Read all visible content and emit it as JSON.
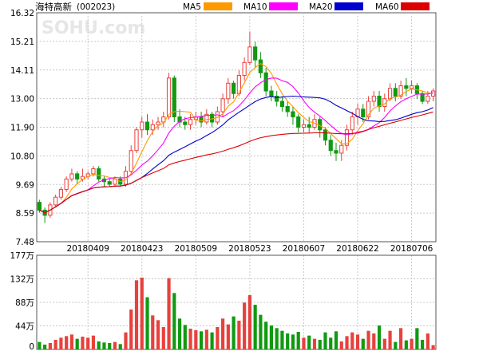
{
  "header": {
    "title": "海特高新",
    "code": "(002023)",
    "watermark": "SOHU.com"
  },
  "legend": [
    {
      "name": "MA5",
      "color": "#ff9900"
    },
    {
      "name": "MA10",
      "color": "#ff00ff"
    },
    {
      "name": "MA20",
      "color": "#0000cc"
    },
    {
      "name": "MA60",
      "color": "#dd0000"
    }
  ],
  "colors": {
    "up": "#e8413d",
    "down": "#119911",
    "grid": "#c8c8c8",
    "border": "#555555"
  },
  "chart_data": [
    {
      "type": "candlestick",
      "ylim": [
        7.48,
        16.32
      ],
      "y_ticks": [
        "16.32",
        "15.21",
        "14.11",
        "13.00",
        "11.90",
        "10.80",
        "9.69",
        "8.59",
        "7.48"
      ],
      "x_ticks": [
        {
          "index": 9,
          "label": "20180409"
        },
        {
          "index": 19,
          "label": "20180423"
        },
        {
          "index": 29,
          "label": "20180509"
        },
        {
          "index": 39,
          "label": "20180523"
        },
        {
          "index": 49,
          "label": "20180607"
        },
        {
          "index": 59,
          "label": "20180622"
        },
        {
          "index": 69,
          "label": "20180706"
        }
      ],
      "candles": [
        [
          9.0,
          8.7,
          9.1,
          8.6
        ],
        [
          8.7,
          8.5,
          8.8,
          8.2
        ],
        [
          8.5,
          8.9,
          9.0,
          8.4
        ],
        [
          8.9,
          9.2,
          9.3,
          8.8
        ],
        [
          9.2,
          9.5,
          9.6,
          9.1
        ],
        [
          9.5,
          9.9,
          10.0,
          9.4
        ],
        [
          9.9,
          10.1,
          10.3,
          9.8
        ],
        [
          10.1,
          9.9,
          10.2,
          9.7
        ],
        [
          9.9,
          10.0,
          10.3,
          9.8
        ],
        [
          10.0,
          10.1,
          10.2,
          9.9
        ],
        [
          10.1,
          10.3,
          10.4,
          10.0
        ],
        [
          10.3,
          9.9,
          10.4,
          9.8
        ],
        [
          9.9,
          9.8,
          10.0,
          9.6
        ],
        [
          9.8,
          9.7,
          9.9,
          9.6
        ],
        [
          9.7,
          9.9,
          10.0,
          9.6
        ],
        [
          9.9,
          9.7,
          10.0,
          9.6
        ],
        [
          9.7,
          10.2,
          10.4,
          9.6
        ],
        [
          10.2,
          11.0,
          11.2,
          10.1
        ],
        [
          11.0,
          11.8,
          11.9,
          10.9
        ],
        [
          11.8,
          12.1,
          12.3,
          11.5
        ],
        [
          12.1,
          11.8,
          12.4,
          11.6
        ],
        [
          11.8,
          12.0,
          12.2,
          11.6
        ],
        [
          12.0,
          12.1,
          12.3,
          11.8
        ],
        [
          12.1,
          12.3,
          12.5,
          11.9
        ],
        [
          12.3,
          13.8,
          14.0,
          12.2
        ],
        [
          13.8,
          12.3,
          13.9,
          12.1
        ],
        [
          12.3,
          12.1,
          12.6,
          11.9
        ],
        [
          12.1,
          12.0,
          12.3,
          11.8
        ],
        [
          12.0,
          12.2,
          12.4,
          11.8
        ],
        [
          12.2,
          12.3,
          12.5,
          12.0
        ],
        [
          12.3,
          12.1,
          12.5,
          11.9
        ],
        [
          12.1,
          12.4,
          12.6,
          12.0
        ],
        [
          12.4,
          12.1,
          12.5,
          11.9
        ],
        [
          12.1,
          12.5,
          12.7,
          12.0
        ],
        [
          12.5,
          13.0,
          13.2,
          12.3
        ],
        [
          13.0,
          13.6,
          13.8,
          12.8
        ],
        [
          13.6,
          13.2,
          13.7,
          13.0
        ],
        [
          13.2,
          13.9,
          14.1,
          13.1
        ],
        [
          13.9,
          14.4,
          14.6,
          13.7
        ],
        [
          14.4,
          15.0,
          15.6,
          14.3
        ],
        [
          15.0,
          14.5,
          15.2,
          14.2
        ],
        [
          14.5,
          14.0,
          14.8,
          13.8
        ],
        [
          14.0,
          13.3,
          14.2,
          13.1
        ],
        [
          13.3,
          13.1,
          13.5,
          12.9
        ],
        [
          13.1,
          12.9,
          13.3,
          12.7
        ],
        [
          12.9,
          12.7,
          13.1,
          12.5
        ],
        [
          12.7,
          12.5,
          12.9,
          12.3
        ],
        [
          12.5,
          12.3,
          12.7,
          12.0
        ],
        [
          12.3,
          11.9,
          12.4,
          11.7
        ],
        [
          11.9,
          12.0,
          12.2,
          11.7
        ],
        [
          12.0,
          11.9,
          12.3,
          11.7
        ],
        [
          11.9,
          12.2,
          12.4,
          11.8
        ],
        [
          12.2,
          11.8,
          12.3,
          11.5
        ],
        [
          11.8,
          11.4,
          11.9,
          11.2
        ],
        [
          11.4,
          11.0,
          11.6,
          10.8
        ],
        [
          11.0,
          10.9,
          11.3,
          10.6
        ],
        [
          10.9,
          11.2,
          11.4,
          10.6
        ],
        [
          11.2,
          11.8,
          12.0,
          11.0
        ],
        [
          11.8,
          12.3,
          12.5,
          11.6
        ],
        [
          12.3,
          12.6,
          12.8,
          12.0
        ],
        [
          12.6,
          12.3,
          12.8,
          12.1
        ],
        [
          12.3,
          12.9,
          13.1,
          12.2
        ],
        [
          12.9,
          13.1,
          13.3,
          12.7
        ],
        [
          13.1,
          12.7,
          13.3,
          12.5
        ],
        [
          12.7,
          13.0,
          13.2,
          12.5
        ],
        [
          13.0,
          13.4,
          13.6,
          12.9
        ],
        [
          13.4,
          13.1,
          13.6,
          12.9
        ],
        [
          13.1,
          13.5,
          13.7,
          13.0
        ],
        [
          13.5,
          13.4,
          13.8,
          13.1
        ],
        [
          13.4,
          13.5,
          13.7,
          13.2
        ],
        [
          13.5,
          13.2,
          13.6,
          13.0
        ],
        [
          13.2,
          12.9,
          13.3,
          12.8
        ],
        [
          12.9,
          13.1,
          13.3,
          12.8
        ],
        [
          13.1,
          13.3,
          13.4,
          12.9
        ]
      ]
    },
    {
      "type": "bar",
      "ylim": [
        0,
        177
      ],
      "y_ticks": [
        "177万",
        "132万",
        "88万",
        "44万",
        "0"
      ],
      "values": [
        14,
        9,
        12,
        18,
        22,
        25,
        28,
        20,
        24,
        22,
        26,
        15,
        13,
        12,
        14,
        10,
        32,
        75,
        130,
        135,
        98,
        64,
        55,
        42,
        134,
        106,
        58,
        46,
        39,
        36,
        34,
        37,
        32,
        42,
        58,
        47,
        62,
        54,
        88,
        102,
        84,
        65,
        52,
        45,
        40,
        35,
        30,
        28,
        33,
        22,
        26,
        20,
        18,
        32,
        22,
        34,
        15,
        25,
        32,
        28,
        20,
        35,
        30,
        45,
        20,
        35,
        14,
        40,
        17,
        20,
        40,
        18,
        30,
        8
      ]
    }
  ]
}
